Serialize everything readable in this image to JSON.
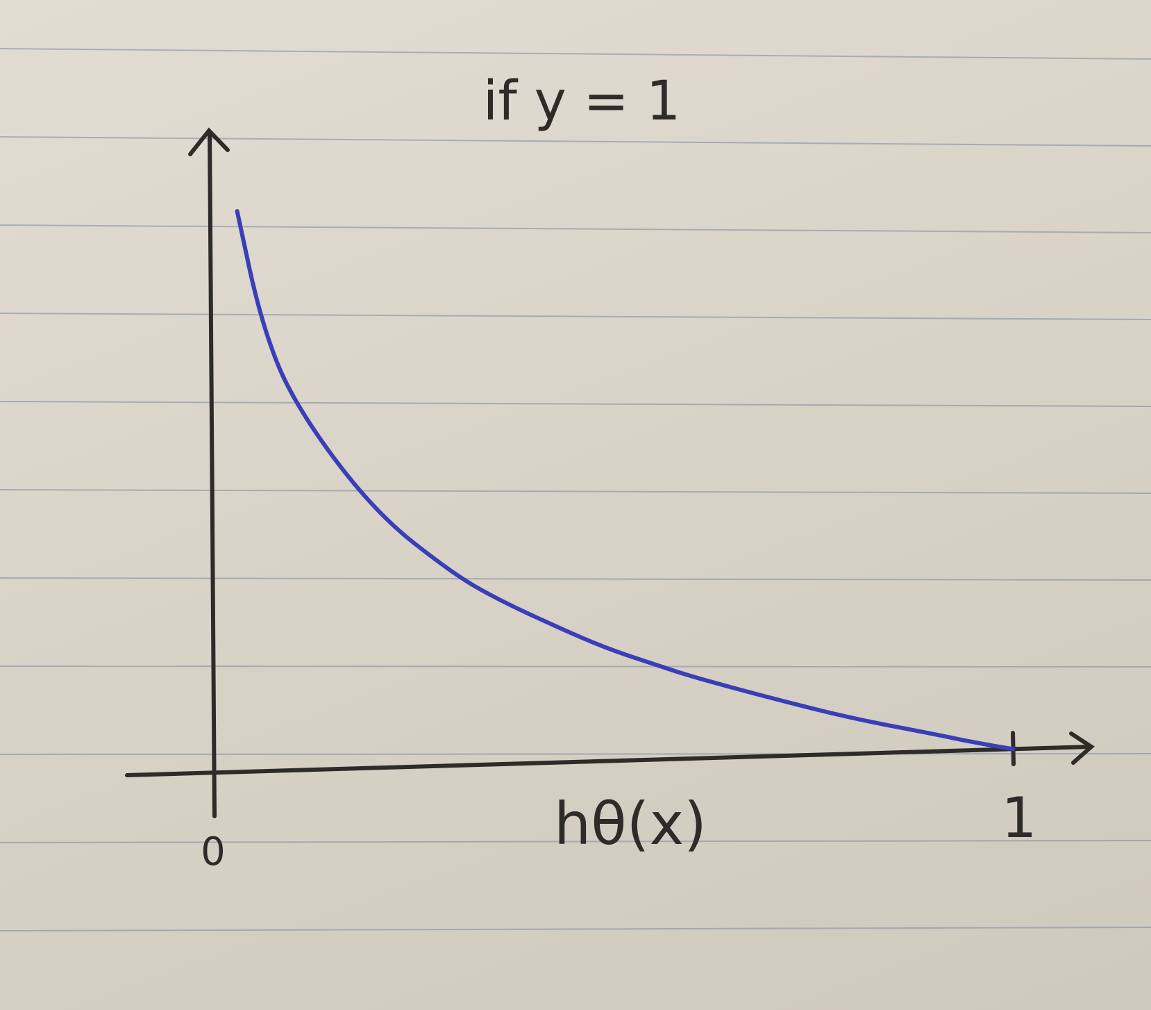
{
  "chart_data": {
    "type": "line",
    "title": "if y = 1",
    "xlabel": "hθ(x)",
    "ylabel": "",
    "xlim": [
      0,
      1
    ],
    "x_ticks": [
      "0",
      "1"
    ],
    "grid": false,
    "series": [
      {
        "color": "#3a3fb8",
        "x": [
          0.03,
          0.06,
          0.1,
          0.2,
          0.3,
          0.36,
          0.45,
          0.5,
          0.55,
          0.6,
          0.7,
          0.8,
          0.9,
          0.95,
          1.0
        ],
        "y": [
          3.51,
          2.81,
          2.3,
          1.61,
          1.2,
          1.02,
          0.8,
          0.69,
          0.6,
          0.51,
          0.36,
          0.22,
          0.11,
          0.05,
          0.0
        ]
      }
    ]
  },
  "colors": {
    "paper": "#dcd6cb",
    "rule_line": "#7e8aa0",
    "ink": "#2e2b29",
    "curve": "#3a3fb8"
  }
}
